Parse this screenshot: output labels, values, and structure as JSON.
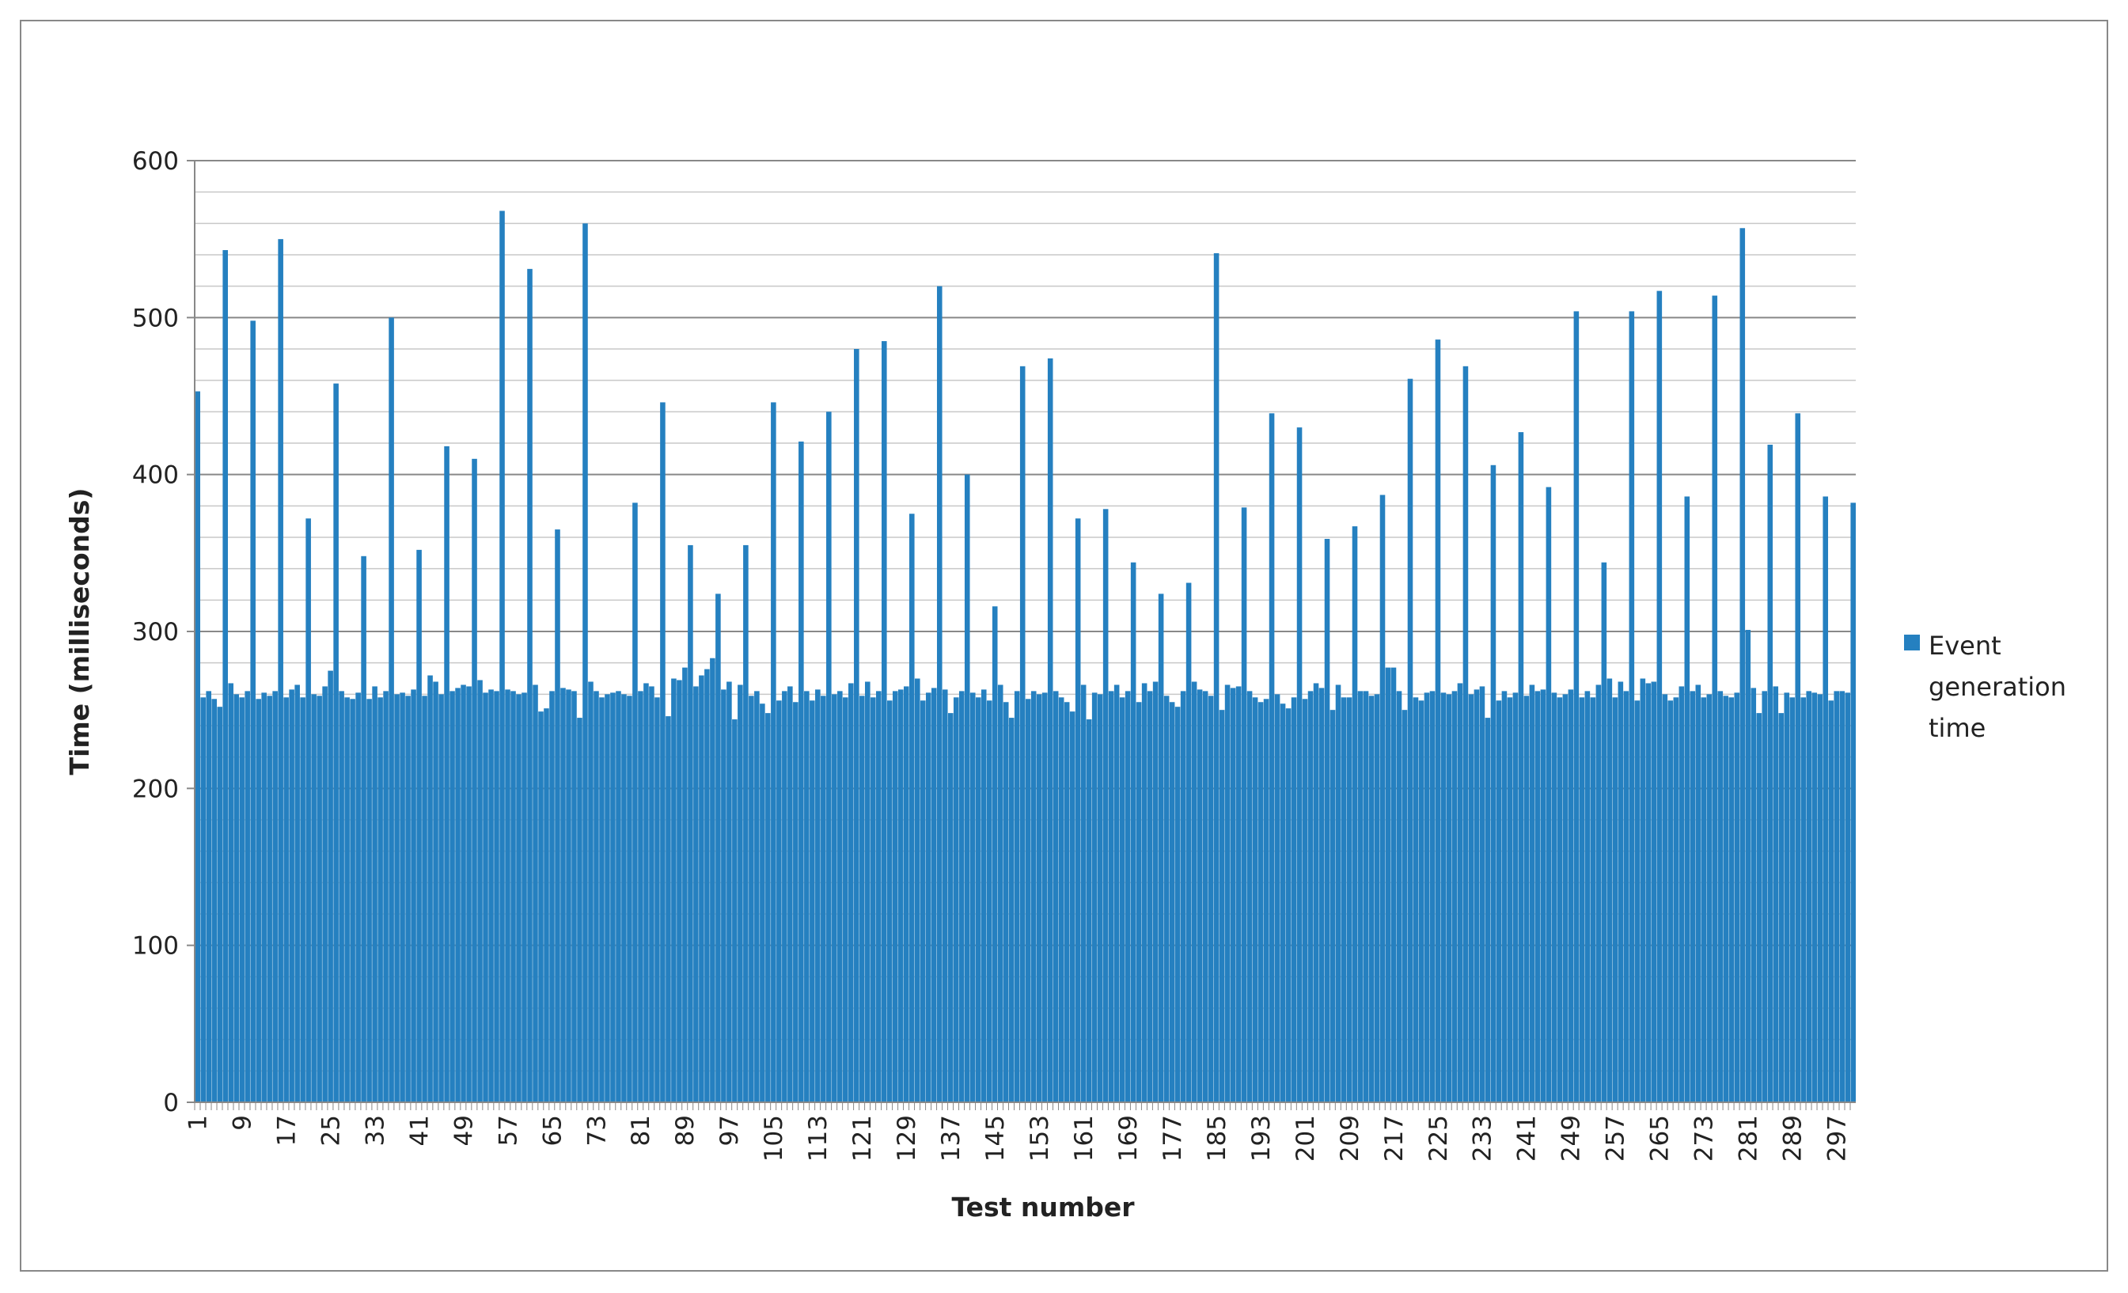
{
  "chart_data": {
    "type": "bar",
    "x_label": "Test number",
    "y_label": "Time (milliseconds)",
    "categories": [
      "1",
      null,
      null,
      null,
      null,
      null,
      null,
      null,
      "9",
      null,
      null,
      null,
      null,
      null,
      null,
      null,
      "17",
      null,
      null,
      null,
      null,
      null,
      null,
      null,
      "25",
      null,
      null,
      null,
      null,
      null,
      null,
      null,
      "33",
      null,
      null,
      null,
      null,
      null,
      null,
      null,
      "41",
      null,
      null,
      null,
      null,
      null,
      null,
      null,
      "49",
      null,
      null,
      null,
      null,
      null,
      null,
      null,
      "57",
      null,
      null,
      null,
      null,
      null,
      null,
      null,
      "65",
      null,
      null,
      null,
      null,
      null,
      null,
      null,
      "73",
      null,
      null,
      null,
      null,
      null,
      null,
      null,
      "81",
      null,
      null,
      null,
      null,
      null,
      null,
      null,
      "89",
      null,
      null,
      null,
      null,
      null,
      null,
      null,
      "97",
      null,
      null,
      null,
      null,
      null,
      null,
      null,
      "105",
      null,
      null,
      null,
      null,
      null,
      null,
      null,
      "113",
      null,
      null,
      null,
      null,
      null,
      null,
      null,
      "121",
      null,
      null,
      null,
      null,
      null,
      null,
      null,
      "129",
      null,
      null,
      null,
      null,
      null,
      null,
      null,
      "137",
      null,
      null,
      null,
      null,
      null,
      null,
      null,
      "145",
      null,
      null,
      null,
      null,
      null,
      null,
      null,
      "153",
      null,
      null,
      null,
      null,
      null,
      null,
      null,
      "161",
      null,
      null,
      null,
      null,
      null,
      null,
      null,
      "169",
      null,
      null,
      null,
      null,
      null,
      null,
      null,
      "177",
      null,
      null,
      null,
      null,
      null,
      null,
      null,
      "185",
      null,
      null,
      null,
      null,
      null,
      null,
      null,
      "193",
      null,
      null,
      null,
      null,
      null,
      null,
      null,
      "201",
      null,
      null,
      null,
      null,
      null,
      null,
      null,
      "209",
      null,
      null,
      null,
      null,
      null,
      null,
      null,
      "217",
      null,
      null,
      null,
      null,
      null,
      null,
      null,
      "225",
      null,
      null,
      null,
      null,
      null,
      null,
      null,
      "233",
      null,
      null,
      null,
      null,
      null,
      null,
      null,
      "241",
      null,
      null,
      null,
      null,
      null,
      null,
      null,
      "249",
      null,
      null,
      null,
      null,
      null,
      null,
      null,
      "257",
      null,
      null,
      null,
      null,
      null,
      null,
      null,
      "265",
      null,
      null,
      null,
      null,
      null,
      null,
      null,
      "273",
      null,
      null,
      null,
      null,
      null,
      null,
      null,
      "281",
      null,
      null,
      null,
      null,
      null,
      null,
      null,
      "289",
      null,
      null,
      null,
      null,
      null,
      null,
      null,
      "297",
      null,
      null,
      null
    ],
    "series": [
      {
        "name": "Event generation time",
        "color": "#2580c0",
        "values": [
          453,
          258,
          262,
          257,
          252,
          543,
          267,
          260,
          258,
          262,
          498,
          257,
          261,
          259,
          262,
          550,
          258,
          263,
          266,
          258,
          372,
          260,
          259,
          265,
          275,
          458,
          262,
          258,
          257,
          261,
          348,
          257,
          265,
          258,
          262,
          500,
          260,
          261,
          259,
          263,
          352,
          259,
          272,
          268,
          260,
          418,
          262,
          264,
          266,
          265,
          410,
          269,
          261,
          263,
          262,
          568,
          263,
          262,
          260,
          261,
          531,
          266,
          249,
          251,
          262,
          365,
          264,
          263,
          262,
          245,
          560,
          268,
          262,
          258,
          260,
          261,
          262,
          260,
          259,
          382,
          262,
          267,
          265,
          258,
          446,
          246,
          270,
          269,
          277,
          355,
          265,
          272,
          276,
          283,
          324,
          263,
          268,
          244,
          266,
          355,
          259,
          262,
          254,
          248,
          446,
          256,
          262,
          265,
          255,
          421,
          262,
          256,
          263,
          259,
          440,
          260,
          262,
          258,
          267,
          480,
          259,
          268,
          258,
          262,
          485,
          256,
          262,
          263,
          265,
          375,
          270,
          256,
          261,
          264,
          520,
          263,
          248,
          258,
          262,
          400,
          261,
          258,
          263,
          256,
          316,
          266,
          255,
          245,
          262,
          469,
          257,
          262,
          260,
          261,
          474,
          262,
          258,
          255,
          249,
          372,
          266,
          244,
          261,
          260,
          378,
          262,
          266,
          258,
          262,
          344,
          255,
          267,
          262,
          268,
          324,
          259,
          255,
          252,
          262,
          331,
          268,
          263,
          262,
          259,
          541,
          250,
          266,
          264,
          265,
          379,
          262,
          258,
          255,
          257,
          439,
          260,
          254,
          251,
          258,
          430,
          257,
          262,
          267,
          264,
          359,
          250,
          266,
          258,
          258,
          367,
          262,
          262,
          259,
          260,
          387,
          277,
          277,
          262,
          250,
          461,
          258,
          256,
          261,
          262,
          486,
          261,
          260,
          262,
          267,
          469,
          260,
          263,
          265,
          245,
          406,
          256,
          262,
          258,
          261,
          427,
          259,
          266,
          262,
          263,
          392,
          261,
          258,
          260,
          263,
          504,
          258,
          262,
          258,
          266,
          344,
          270,
          258,
          268,
          262,
          504,
          256,
          270,
          267,
          268,
          517,
          260,
          256,
          258,
          265,
          386,
          262,
          266,
          258,
          260,
          514,
          262,
          259,
          258,
          261,
          557,
          301,
          264,
          248,
          262,
          419,
          265,
          248,
          261,
          258,
          439,
          258,
          262,
          261,
          260,
          386,
          256,
          262,
          262,
          261,
          382
        ]
      }
    ],
    "ylim": [
      0,
      600
    ],
    "yticks": [
      0,
      100,
      200,
      300,
      400,
      500,
      600
    ],
    "grid": true,
    "legend": "right"
  }
}
